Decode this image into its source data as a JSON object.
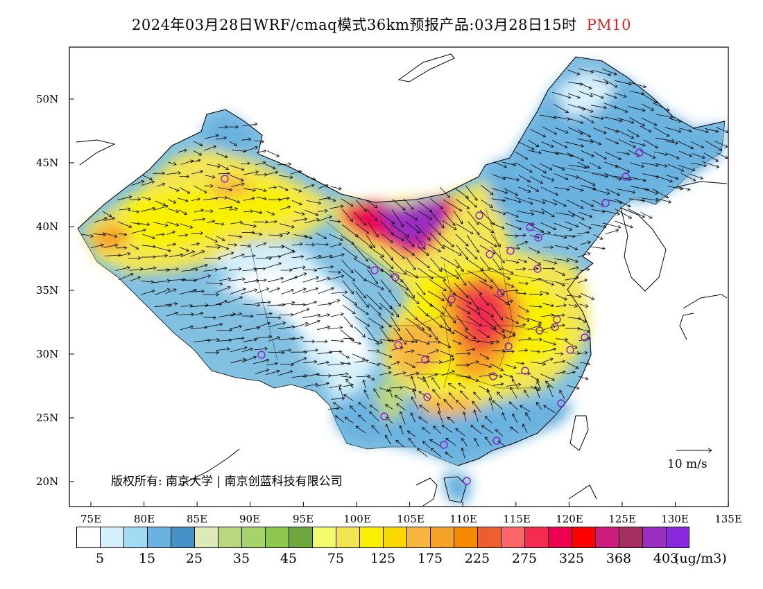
{
  "title": {
    "main": "2024年03月28日WRF/cmaq模式36km预报产品:03月28日15时",
    "variable": "PM10",
    "variable_color": "#e02020"
  },
  "lat_labels": [
    "50N",
    "45N",
    "40N",
    "35N",
    "30N",
    "25N",
    "20N"
  ],
  "lon_labels": [
    "75E",
    "80E",
    "85E",
    "90E",
    "95E",
    "100E",
    "105E",
    "110E",
    "115E",
    "120E",
    "125E",
    "130E",
    "135E"
  ],
  "copyright": "版权所有: 南京大学 | 南京创蓝科技有限公司",
  "wind_reference": "10 m/s",
  "colorbar": {
    "colors": [
      "#ffffff",
      "#d6f0fb",
      "#a0dcf4",
      "#6ab2df",
      "#4690c8",
      "#dbeab8",
      "#bbd77e",
      "#a6d46a",
      "#8cc84e",
      "#6ea83c",
      "#f3fa6c",
      "#f3e454",
      "#f9f000",
      "#f8d800",
      "#f6b640",
      "#f6a428",
      "#f68a00",
      "#ee5e2e",
      "#fc6666",
      "#f42c52",
      "#ee0050",
      "#ff0000",
      "#cc1c7c",
      "#a62e5e",
      "#9a2ec0",
      "#8a28e0"
    ],
    "tick_labels": [
      "5",
      "15",
      "25",
      "35",
      "45",
      "75",
      "125",
      "175",
      "225",
      "275",
      "325",
      "368",
      "403"
    ],
    "unit": "(ug/m3)"
  }
}
